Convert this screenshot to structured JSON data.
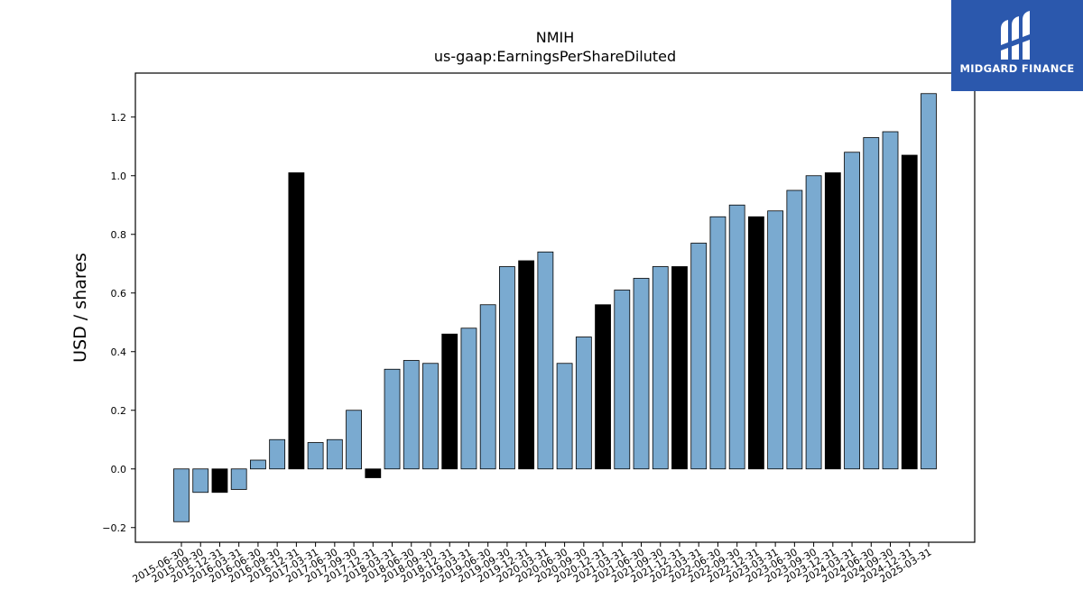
{
  "chart_data": {
    "type": "bar",
    "title": "NMIH",
    "subtitle": "us-gaap:EarningsPerShareDiluted",
    "xlabel": "",
    "ylabel": "USD / shares",
    "ylim": [
      -0.25,
      1.35
    ],
    "yticks": [
      -0.2,
      0.0,
      0.2,
      0.4,
      0.6,
      0.8,
      1.0,
      1.2
    ],
    "categories": [
      "2015-06-30",
      "2015-09-30",
      "2015-12-31",
      "2016-03-31",
      "2016-06-30",
      "2016-09-30",
      "2016-12-31",
      "2017-03-31",
      "2017-06-30",
      "2017-09-30",
      "2017-12-31",
      "2018-03-31",
      "2018-06-30",
      "2018-09-30",
      "2018-12-31",
      "2019-03-31",
      "2019-06-30",
      "2019-09-30",
      "2019-12-31",
      "2020-03-31",
      "2020-06-30",
      "2020-09-30",
      "2020-12-31",
      "2021-03-31",
      "2021-06-30",
      "2021-09-30",
      "2021-12-31",
      "2022-03-31",
      "2022-06-30",
      "2022-09-30",
      "2022-12-31",
      "2023-03-31",
      "2023-06-30",
      "2023-09-30",
      "2023-12-31",
      "2024-03-31",
      "2024-06-30",
      "2024-09-30",
      "2024-12-31",
      "2025-03-31"
    ],
    "values": [
      -0.18,
      -0.08,
      -0.08,
      -0.07,
      0.03,
      0.1,
      1.01,
      0.09,
      0.1,
      0.2,
      -0.03,
      0.34,
      0.37,
      0.36,
      0.46,
      0.48,
      0.56,
      0.69,
      0.71,
      0.74,
      0.36,
      0.45,
      0.56,
      0.61,
      0.65,
      0.69,
      0.69,
      0.77,
      0.86,
      0.9,
      0.86,
      0.88,
      0.95,
      1.0,
      1.01,
      1.08,
      1.13,
      1.15,
      1.07,
      1.28
    ],
    "highlight": [
      false,
      false,
      true,
      false,
      false,
      false,
      true,
      false,
      false,
      false,
      true,
      false,
      false,
      false,
      true,
      false,
      false,
      false,
      true,
      false,
      false,
      false,
      true,
      false,
      false,
      false,
      true,
      false,
      false,
      false,
      true,
      false,
      false,
      false,
      true,
      false,
      false,
      false,
      true,
      false
    ],
    "colors": {
      "bar": "#7aaad0",
      "highlight": "#000000"
    },
    "grid": false
  },
  "logo": {
    "text": "MIDGARD FINANCE"
  }
}
